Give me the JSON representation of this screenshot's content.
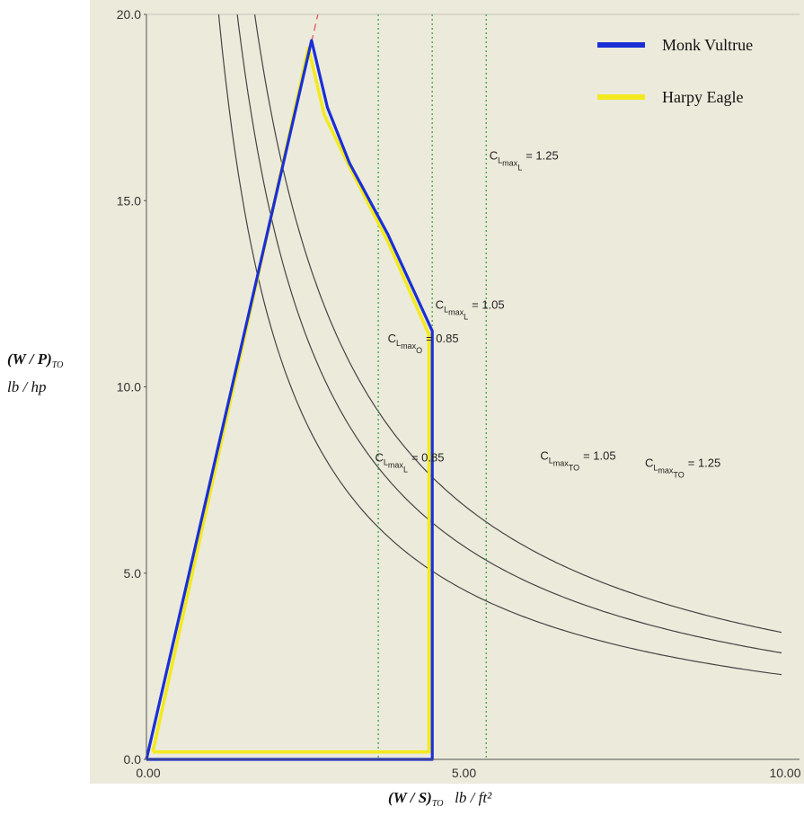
{
  "chart_data": {
    "type": "line",
    "title": "",
    "xlabel": "(W / S)TO  lb / ft²",
    "ylabel": "(W / P)TO  lb / hp",
    "xlim": [
      0,
      10
    ],
    "ylim": [
      0,
      20
    ],
    "x_ticks": [
      "0.00",
      "5.00",
      "10.00"
    ],
    "y_ticks": [
      "0.0",
      "5.0",
      "10.0",
      "15.0",
      "20.0"
    ],
    "x_tick_values": [
      0,
      5,
      10
    ],
    "y_tick_values": [
      0,
      5,
      10,
      15,
      20
    ],
    "grid": false,
    "legend_position": "top-right",
    "series": [
      {
        "name": "Monk Vultrue",
        "color": "#1a2fd6",
        "x": [
          0.0,
          2.6,
          2.85,
          3.2,
          3.8,
          4.5,
          4.5,
          4.5,
          0.0
        ],
        "y": [
          0.0,
          19.3,
          17.5,
          16.0,
          14.1,
          11.5,
          10.7,
          0.0,
          0.0
        ]
      },
      {
        "name": "Harpy Eagle",
        "color": "#f2ea1e",
        "x": [
          0.1,
          2.55,
          2.8,
          3.2,
          3.8,
          4.45,
          4.45,
          4.45,
          0.1
        ],
        "y": [
          0.2,
          19.1,
          17.3,
          15.9,
          13.9,
          11.4,
          10.5,
          0.2,
          0.2
        ]
      }
    ],
    "reference_curves": [
      {
        "label": "CLmaxTO = 0.85",
        "k": 22.75,
        "color": "#444444"
      },
      {
        "label": "CLmaxTO = 1.05",
        "k": 28.6,
        "color": "#444444"
      },
      {
        "label": "CLmaxTO = 1.25",
        "k": 34.1,
        "color": "#444444"
      }
    ],
    "vertical_lines": [
      {
        "label": "CLmaxL = 0.85",
        "x": 3.65,
        "color": "#3aa83a"
      },
      {
        "label": "CLmaxL = 1.05",
        "x": 4.5,
        "color": "#3aa83a"
      },
      {
        "label": "CLmaxL = 1.25",
        "x": 5.35,
        "color": "#3aa83a"
      }
    ],
    "dashed_line": {
      "color": "#d95050",
      "x": [
        0.0,
        2.7
      ],
      "y": [
        0.0,
        20.0
      ]
    },
    "annotations": [
      {
        "base": "C",
        "sub1": "L",
        "sub2": "max",
        "sub3": "L",
        "value": "= 1.25",
        "x": 5.4,
        "y": 16.1
      },
      {
        "base": "C",
        "sub1": "L",
        "sub2": "max",
        "sub3": "L",
        "value": "= 1.05",
        "x": 4.55,
        "y": 12.1
      },
      {
        "base": "C",
        "sub1": "L",
        "sub2": "max",
        "sub3": "O",
        "value": "= 0.85",
        "x": 3.8,
        "y": 11.2
      },
      {
        "base": "C",
        "sub1": "L",
        "sub2": "max",
        "sub3": "L",
        "value": "= 0.85",
        "x": 3.6,
        "y": 8.0
      },
      {
        "base": "C",
        "sub1": "L",
        "sub2": "max",
        "sub3": "TO",
        "value": "= 1.05",
        "x": 6.2,
        "y": 8.05
      },
      {
        "base": "C",
        "sub1": "L",
        "sub2": "max",
        "sub3": "TO",
        "value": "= 1.25",
        "x": 7.85,
        "y": 7.85
      }
    ]
  }
}
